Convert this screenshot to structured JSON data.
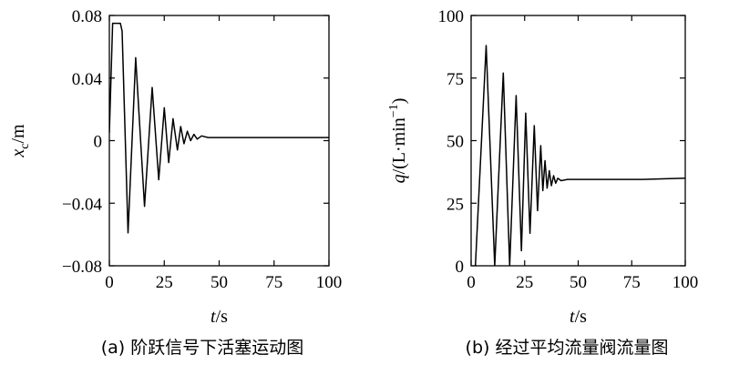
{
  "chart_data": [
    {
      "type": "line",
      "caption": "(a) 阶跃信号下活塞运动图",
      "xlabel": {
        "var": "t",
        "unit": "/s"
      },
      "ylabel": {
        "var": "x",
        "sub": "c",
        "unit": "/m"
      },
      "xlim": [
        0,
        100
      ],
      "ylim": [
        -0.08,
        0.08
      ],
      "xticks": [
        0,
        25,
        50,
        75,
        100
      ],
      "xtick_labels": [
        "0",
        "25",
        "50",
        "75",
        "100"
      ],
      "yticks": [
        0.08,
        0.04,
        0,
        -0.04,
        -0.08
      ],
      "ytick_labels": [
        "0.08",
        "0.04",
        "0",
        "−0.04",
        "−0.08"
      ],
      "grid": false,
      "series": [
        {
          "x": [
            0,
            1.5,
            2.2,
            5.0,
            5.8,
            8.5,
            12.0,
            16.0,
            19.5,
            22.5,
            25.0,
            27.0,
            29.0,
            31.0,
            32.5,
            34.0,
            35.5,
            37.0,
            38.5,
            40.0,
            42.0,
            45.0,
            50.0,
            100.0
          ],
          "y": [
            0.005,
            0.075,
            0.075,
            0.075,
            0.07,
            -0.059,
            0.053,
            -0.042,
            0.034,
            -0.025,
            0.021,
            -0.014,
            0.014,
            -0.006,
            0.009,
            -0.002,
            0.006,
            0.0,
            0.004,
            0.001,
            0.003,
            0.002,
            0.002,
            0.002
          ]
        }
      ]
    },
    {
      "type": "line",
      "caption": "(b) 经过平均流量阀流量图",
      "xlabel": {
        "var": "t",
        "unit": "/s"
      },
      "ylabel": {
        "var": "q",
        "unit": "/(L·min",
        "sup": "−1",
        "unit_end": ")"
      },
      "xlim": [
        0,
        100
      ],
      "ylim": [
        0,
        100
      ],
      "xticks": [
        0,
        25,
        50,
        75,
        100
      ],
      "xtick_labels": [
        "0",
        "25",
        "50",
        "75",
        "100"
      ],
      "yticks": [
        100,
        75,
        50,
        25,
        0
      ],
      "ytick_labels": [
        "100",
        "75",
        "50",
        "25",
        "0"
      ],
      "grid": false,
      "series": [
        {
          "x": [
            2.0,
            7.0,
            11.0,
            15.0,
            18.0,
            21.0,
            23.5,
            25.5,
            27.5,
            29.5,
            31.0,
            32.5,
            33.5,
            34.5,
            35.5,
            36.5,
            37.5,
            38.5,
            39.5,
            40.5,
            42.0,
            45.0,
            50.0,
            80.0,
            100.0
          ],
          "y": [
            0,
            88,
            0,
            77,
            0,
            68,
            6,
            61,
            13,
            56,
            22,
            48,
            30,
            42,
            31,
            38,
            32,
            36,
            33,
            35,
            34,
            34.5,
            34.5,
            34.5,
            35
          ]
        }
      ]
    }
  ]
}
